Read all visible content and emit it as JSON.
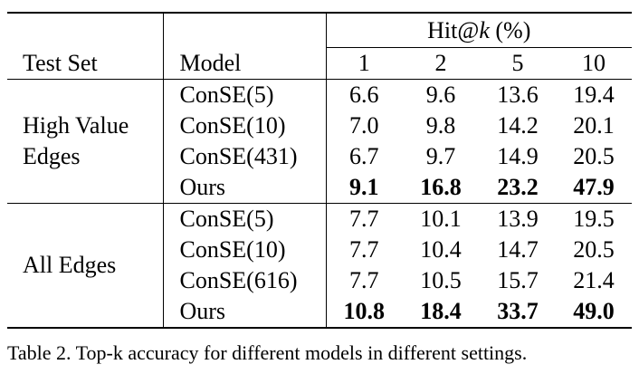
{
  "table": {
    "header": {
      "test_set": "Test Set",
      "model": "Model",
      "hit_prefix": "Hit@",
      "hit_k": "k",
      "hit_suffix": " (%)",
      "k_values": [
        "1",
        "2",
        "5",
        "10"
      ]
    },
    "groups": [
      {
        "label_line1": "High Value",
        "label_line2": "Edges",
        "rows": [
          {
            "model": "ConSE(5)",
            "values": [
              "6.6",
              "9.6",
              "13.6",
              "19.4"
            ],
            "bold": false
          },
          {
            "model": "ConSE(10)",
            "values": [
              "7.0",
              "9.8",
              "14.2",
              "20.1"
            ],
            "bold": false
          },
          {
            "model": "ConSE(431)",
            "values": [
              "6.7",
              "9.7",
              "14.9",
              "20.5"
            ],
            "bold": false
          },
          {
            "model": "Ours",
            "values": [
              "9.1",
              "16.8",
              "23.2",
              "47.9"
            ],
            "bold": true
          }
        ]
      },
      {
        "label_line1": "All Edges",
        "label_line2": "",
        "rows": [
          {
            "model": "ConSE(5)",
            "values": [
              "7.7",
              "10.1",
              "13.9",
              "19.5"
            ],
            "bold": false
          },
          {
            "model": "ConSE(10)",
            "values": [
              "7.7",
              "10.4",
              "14.7",
              "20.5"
            ],
            "bold": false
          },
          {
            "model": "ConSE(616)",
            "values": [
              "7.7",
              "10.5",
              "15.7",
              "21.4"
            ],
            "bold": false
          },
          {
            "model": "Ours",
            "values": [
              "10.8",
              "18.4",
              "33.7",
              "49.0"
            ],
            "bold": true
          }
        ]
      }
    ]
  },
  "caption": "Table 2. Top-k accuracy for different models in different settings."
}
